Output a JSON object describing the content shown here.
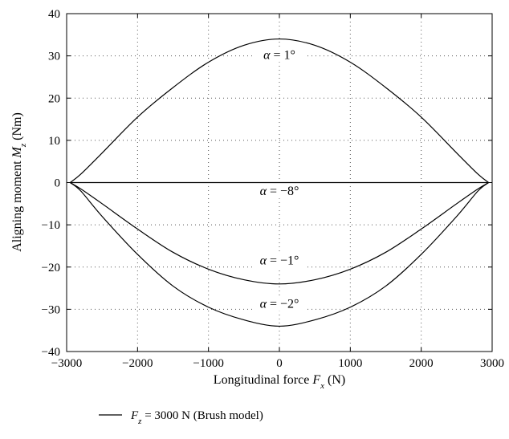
{
  "chart_data": {
    "type": "line",
    "xlabel": "Longitudinal force F_x (N)",
    "ylabel": "Aligning moment M_z (Nm)",
    "xlim": [
      -3000,
      3000
    ],
    "ylim": [
      -40,
      40
    ],
    "xticks": [
      -3000,
      -2000,
      -1000,
      0,
      1000,
      2000,
      3000
    ],
    "yticks": [
      -40,
      -30,
      -20,
      -10,
      0,
      10,
      20,
      30,
      40
    ],
    "grid": true,
    "legend": {
      "placement": "bottom-left",
      "entries": [
        "F_z = 3000 N (Brush model)"
      ]
    },
    "series": [
      {
        "label": "α = 1°",
        "x": [
          -2950,
          -2800,
          -2500,
          -2000,
          -1500,
          -1000,
          -500,
          0,
          500,
          1000,
          1500,
          2000,
          2500,
          2800,
          2950
        ],
        "y": [
          0,
          2,
          7,
          15.5,
          22.5,
          28.5,
          32.5,
          34,
          32.5,
          28.5,
          22.5,
          15.5,
          7,
          2,
          0
        ]
      },
      {
        "label": "α = −8°",
        "x": [
          -2950,
          2950
        ],
        "y": [
          0,
          0
        ]
      },
      {
        "label": "α = −1°",
        "x": [
          -2950,
          -2800,
          -2500,
          -2000,
          -1500,
          -1000,
          -500,
          0,
          500,
          1000,
          1500,
          2000,
          2500,
          2800,
          2950
        ],
        "y": [
          0,
          -1.5,
          -5,
          -11,
          -16.5,
          -20.5,
          -23,
          -24,
          -23,
          -20.5,
          -16.5,
          -11,
          -5,
          -1.5,
          0
        ]
      },
      {
        "label": "α = −2°",
        "x": [
          -2950,
          -2800,
          -2500,
          -2000,
          -1500,
          -1000,
          -500,
          0,
          500,
          1000,
          1500,
          2000,
          2500,
          2800,
          2950
        ],
        "y": [
          0,
          -2,
          -8,
          -17,
          -24.5,
          -29.5,
          -32.5,
          -34,
          -32.5,
          -29.5,
          -24.5,
          -17,
          -8,
          -2,
          0
        ]
      }
    ],
    "annotations": [
      {
        "text": "α = 1°",
        "x": 0,
        "y": 29.5
      },
      {
        "text": "α = −8°",
        "x": 0,
        "y": -2.8
      },
      {
        "text": "α = −1°",
        "x": 0,
        "y": -19.2
      },
      {
        "text": "α = −2°",
        "x": 0,
        "y": -29.5
      }
    ]
  }
}
